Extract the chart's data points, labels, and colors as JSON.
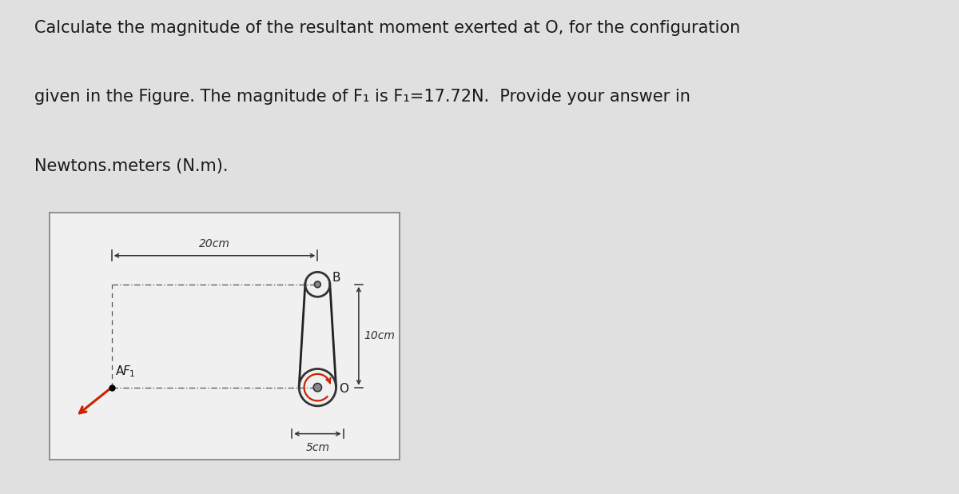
{
  "bg_color": "#e0e0e0",
  "text_color": "#1a1a1a",
  "title_lines": [
    "Calculate the magnitude of the resultant moment exerted at O, for the configuration",
    "given in the Figure. The magnitude of F₁ is F₁=17.72N.  Provide your answer in",
    "Newtons.meters (N.m)."
  ],
  "title_fontsize": 15.0,
  "fig_width": 12.0,
  "fig_height": 6.18,
  "dim_20cm": "20cm",
  "dim_10cm": "10cm",
  "dim_5cm": "5cm",
  "F1_color": "#cc2200",
  "pulley_color": "#333333",
  "belt_color": "#222222",
  "dim_color": "#333333",
  "dashline_color": "#555555"
}
